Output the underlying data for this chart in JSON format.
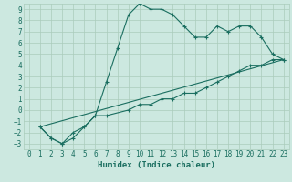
{
  "xlabel": "Humidex (Indice chaleur)",
  "ylabel": "",
  "bg_color": "#cce8e0",
  "grid_color": "#aaccbb",
  "line_color": "#1a6e60",
  "xlim": [
    -0.5,
    23.5
  ],
  "ylim": [
    -3.5,
    9.5
  ],
  "xticks": [
    0,
    1,
    2,
    3,
    4,
    5,
    6,
    7,
    8,
    9,
    10,
    11,
    12,
    13,
    14,
    15,
    16,
    17,
    18,
    19,
    20,
    21,
    22,
    23
  ],
  "yticks": [
    -3,
    -2,
    -1,
    0,
    1,
    2,
    3,
    4,
    5,
    6,
    7,
    8,
    9
  ],
  "line1_x": [
    1,
    2,
    3,
    4,
    5,
    6,
    7,
    8,
    9,
    10,
    11,
    12,
    13,
    14,
    15,
    16,
    17,
    18,
    19,
    20,
    21,
    22,
    23
  ],
  "line1_y": [
    -1.5,
    -2.5,
    -3.0,
    -2.5,
    -1.5,
    -0.5,
    2.5,
    5.5,
    8.5,
    9.5,
    9.0,
    9.0,
    8.5,
    7.5,
    6.5,
    6.5,
    7.5,
    7.0,
    7.5,
    7.5,
    6.5,
    5.0,
    4.5
  ],
  "line2_x": [
    1,
    2,
    3,
    4,
    5,
    6,
    7,
    9,
    10,
    11,
    12,
    13,
    14,
    15,
    16,
    17,
    18,
    19,
    20,
    21,
    22,
    23
  ],
  "line2_y": [
    -1.5,
    -2.5,
    -3.0,
    -2.0,
    -1.5,
    -0.5,
    -0.5,
    0.0,
    0.5,
    0.5,
    1.0,
    1.0,
    1.5,
    1.5,
    2.0,
    2.5,
    3.0,
    3.5,
    4.0,
    4.0,
    4.5,
    4.5
  ],
  "line3_x": [
    1,
    23
  ],
  "line3_y": [
    -1.5,
    4.5
  ],
  "font_size": 6,
  "tick_font_size": 5.5,
  "xlabel_fontsize": 6.5
}
